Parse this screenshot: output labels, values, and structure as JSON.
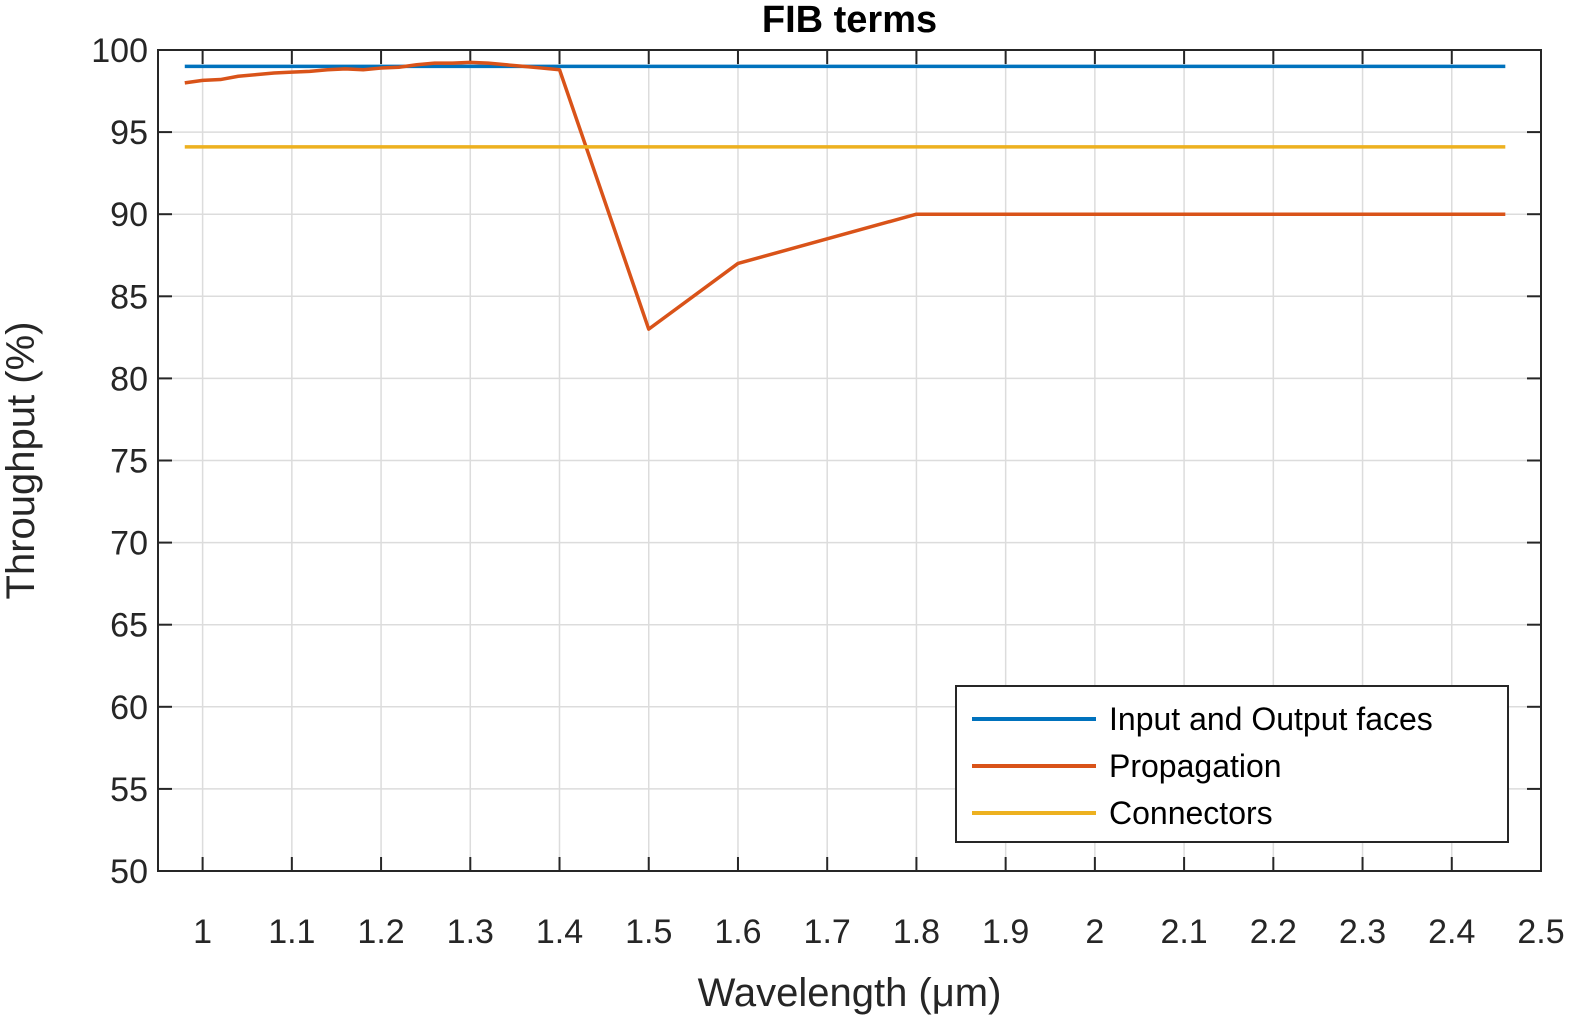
{
  "chart_data": {
    "type": "line",
    "title": "FIB terms",
    "xlabel": "Wavelength (μm)",
    "ylabel": "Throughput (%)",
    "xlim": [
      0.95,
      2.5
    ],
    "ylim": [
      50,
      100
    ],
    "xticks": [
      1,
      1.1,
      1.2,
      1.3,
      1.4,
      1.5,
      1.6,
      1.7,
      1.8,
      1.9,
      2,
      2.1,
      2.2,
      2.3,
      2.4,
      2.5
    ],
    "xtick_labels": [
      "1",
      "1.1",
      "1.2",
      "1.3",
      "1.4",
      "1.5",
      "1.6",
      "1.7",
      "1.8",
      "1.9",
      "2",
      "2.1",
      "2.2",
      "2.3",
      "2.4",
      "2.5"
    ],
    "yticks": [
      50,
      55,
      60,
      65,
      70,
      75,
      80,
      85,
      90,
      95,
      100
    ],
    "ytick_labels": [
      "50",
      "55",
      "60",
      "65",
      "70",
      "75",
      "80",
      "85",
      "90",
      "95",
      "100"
    ],
    "grid": true,
    "legend_position": "bottom-right",
    "series": [
      {
        "name": "Input and Output faces",
        "color": "#0072BD",
        "x": [
          0.98,
          2.46
        ],
        "y": [
          99,
          99
        ]
      },
      {
        "name": "Propagation",
        "color": "#D95319",
        "x": [
          0.98,
          1.0,
          1.02,
          1.04,
          1.06,
          1.08,
          1.1,
          1.12,
          1.14,
          1.16,
          1.18,
          1.2,
          1.22,
          1.24,
          1.26,
          1.28,
          1.3,
          1.32,
          1.34,
          1.36,
          1.38,
          1.4,
          1.5,
          1.6,
          1.7,
          1.8,
          2.46
        ],
        "y": [
          98.0,
          98.15,
          98.2,
          98.4,
          98.5,
          98.6,
          98.65,
          98.7,
          98.8,
          98.85,
          98.8,
          98.9,
          98.95,
          99.1,
          99.2,
          99.2,
          99.25,
          99.2,
          99.1,
          99.0,
          98.9,
          98.8,
          83,
          87,
          88.5,
          90,
          90
        ]
      },
      {
        "name": "Connectors",
        "color": "#EDB120",
        "x": [
          0.98,
          2.46
        ],
        "y": [
          94.1,
          94.1
        ]
      }
    ]
  }
}
